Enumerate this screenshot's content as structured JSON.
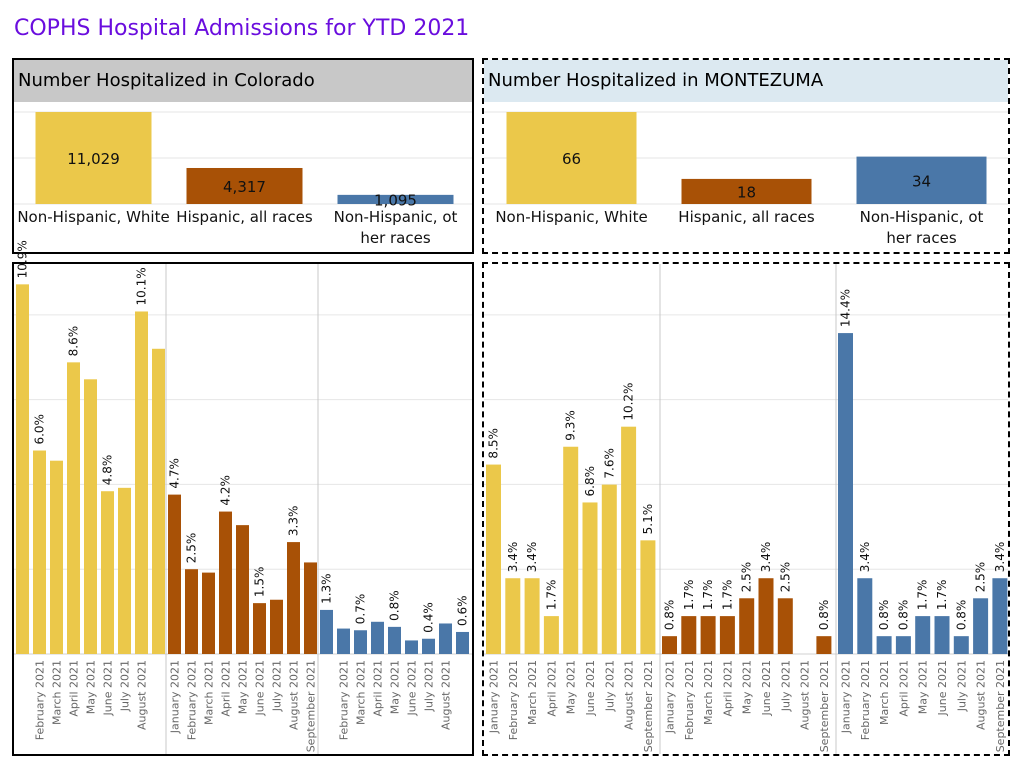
{
  "page_title": "COPHS Hospital Admissions for YTD 2021",
  "colors": {
    "white": "#ebc84a",
    "hispanic": "#a85106",
    "other": "#4a77a8",
    "title": "#6a0dde",
    "grid": "#e6e6e6"
  },
  "panels": {
    "colorado_summary": {
      "title": "Number Hospitalized in Colorado",
      "header_bg": "#c8c8c8"
    },
    "montezuma_summary": {
      "title": "Number Hospitalized in MONTEZUMA",
      "header_bg": "#dce9f1"
    }
  },
  "chart_data": [
    {
      "type": "bar",
      "id": "colorado_totals",
      "categories": [
        "Non-Hispanic, White",
        "Hispanic, all races",
        "Non-Hispanic, other races"
      ],
      "values": [
        11029,
        4317,
        1095
      ],
      "labels": [
        "11,029",
        "4,317",
        "1,095"
      ],
      "ylim": [
        0,
        11029
      ]
    },
    {
      "type": "bar",
      "id": "montezuma_totals",
      "categories": [
        "Non-Hispanic, White",
        "Hispanic, all races",
        "Non-Hispanic, other races"
      ],
      "values": [
        66,
        18,
        34
      ],
      "labels": [
        "66",
        "18",
        "34"
      ],
      "ylim": [
        0,
        66
      ]
    },
    {
      "type": "bar",
      "id": "colorado_monthly_pct",
      "ylim": [
        0,
        11.5
      ],
      "groups": [
        {
          "name": "Non-Hispanic, White",
          "categories": [
            "January 2021",
            "February 2021",
            "March 2021",
            "April 2021",
            "May 2021",
            "June 2021",
            "July 2021",
            "August 2021",
            "September 2021"
          ],
          "tick_labels": [
            "",
            "February 2021",
            "March 2021",
            "April 2021",
            "May 2021",
            "June 2021",
            "July 2021",
            "August 2021",
            ""
          ],
          "values": [
            10.9,
            6.0,
            5.7,
            8.6,
            8.1,
            4.8,
            4.9,
            10.1,
            9.0
          ],
          "data_labels": [
            "10.9%",
            "6.0%",
            "",
            "8.6%",
            "",
            "4.8%",
            "",
            "10.1%",
            ""
          ]
        },
        {
          "name": "Hispanic, all races",
          "categories": [
            "January 2021",
            "February 2021",
            "March 2021",
            "April 2021",
            "May 2021",
            "June 2021",
            "July 2021",
            "August 2021",
            "September 2021"
          ],
          "tick_labels": [
            "January 2021",
            "February 2021",
            "March 2021",
            "April 2021",
            "May 2021",
            "June 2021",
            "July 2021",
            "August 2021",
            "September 2021"
          ],
          "values": [
            4.7,
            2.5,
            2.4,
            4.2,
            3.8,
            1.5,
            1.6,
            3.3,
            2.7
          ],
          "data_labels": [
            "4.7%",
            "2.5%",
            "",
            "4.2%",
            "",
            "1.5%",
            "",
            "3.3%",
            ""
          ]
        },
        {
          "name": "Non-Hispanic, other races",
          "categories": [
            "January 2021",
            "February 2021",
            "March 2021",
            "April 2021",
            "May 2021",
            "June 2021",
            "July 2021",
            "August 2021",
            "September 2021"
          ],
          "tick_labels": [
            "",
            "February 2021",
            "March 2021",
            "April 2021",
            "May 2021",
            "June 2021",
            "July 2021",
            "August 2021",
            ""
          ],
          "values": [
            1.3,
            0.75,
            0.7,
            0.95,
            0.8,
            0.4,
            0.45,
            0.9,
            0.65
          ],
          "data_labels": [
            "1.3%",
            "",
            "0.7%",
            "",
            "0.8%",
            "",
            "0.4%",
            "",
            "0.6%"
          ]
        }
      ]
    },
    {
      "type": "bar",
      "id": "montezuma_monthly_pct",
      "ylim": [
        0,
        17.5
      ],
      "groups": [
        {
          "name": "Non-Hispanic, White",
          "categories": [
            "January 2021",
            "February 2021",
            "March 2021",
            "April 2021",
            "May 2021",
            "June 2021",
            "July 2021",
            "August 2021",
            "September 2021"
          ],
          "tick_labels": [
            "January 2021",
            "February 2021",
            "March 2021",
            "April 2021",
            "May 2021",
            "June 2021",
            "July 2021",
            "August 2021",
            "September 2021"
          ],
          "values": [
            8.5,
            3.4,
            3.4,
            1.7,
            9.3,
            6.8,
            7.6,
            10.2,
            5.1
          ],
          "data_labels": [
            "8.5%",
            "3.4%",
            "3.4%",
            "1.7%",
            "9.3%",
            "6.8%",
            "7.6%",
            "10.2%",
            "5.1%"
          ]
        },
        {
          "name": "Hispanic, all races",
          "categories": [
            "January 2021",
            "February 2021",
            "March 2021",
            "April 2021",
            "May 2021",
            "June 2021",
            "July 2021",
            "August 2021",
            "September 2021"
          ],
          "tick_labels": [
            "January 2021",
            "February 2021",
            "March 2021",
            "April 2021",
            "May 2021",
            "June 2021",
            "July 2021",
            "August 2021",
            "September 2021"
          ],
          "values": [
            0.8,
            1.7,
            1.7,
            1.7,
            2.5,
            3.4,
            2.5,
            0,
            0.8
          ],
          "data_labels": [
            "0.8%",
            "1.7%",
            "1.7%",
            "1.7%",
            "2.5%",
            "3.4%",
            "2.5%",
            "",
            "0.8%"
          ]
        },
        {
          "name": "Non-Hispanic, other races",
          "categories": [
            "January 2021",
            "February 2021",
            "March 2021",
            "April 2021",
            "May 2021",
            "June 2021",
            "July 2021",
            "August 2021",
            "September 2021"
          ],
          "tick_labels": [
            "January 2021",
            "February 2021",
            "March 2021",
            "April 2021",
            "May 2021",
            "June 2021",
            "July 2021",
            "August 2021",
            "September 2021"
          ],
          "values": [
            14.4,
            3.4,
            0.8,
            0.8,
            1.7,
            1.7,
            0.8,
            2.5,
            3.4
          ],
          "data_labels": [
            "14.4%",
            "3.4%",
            "0.8%",
            "0.8%",
            "1.7%",
            "1.7%",
            "0.8%",
            "2.5%",
            "3.4%"
          ]
        }
      ]
    }
  ]
}
